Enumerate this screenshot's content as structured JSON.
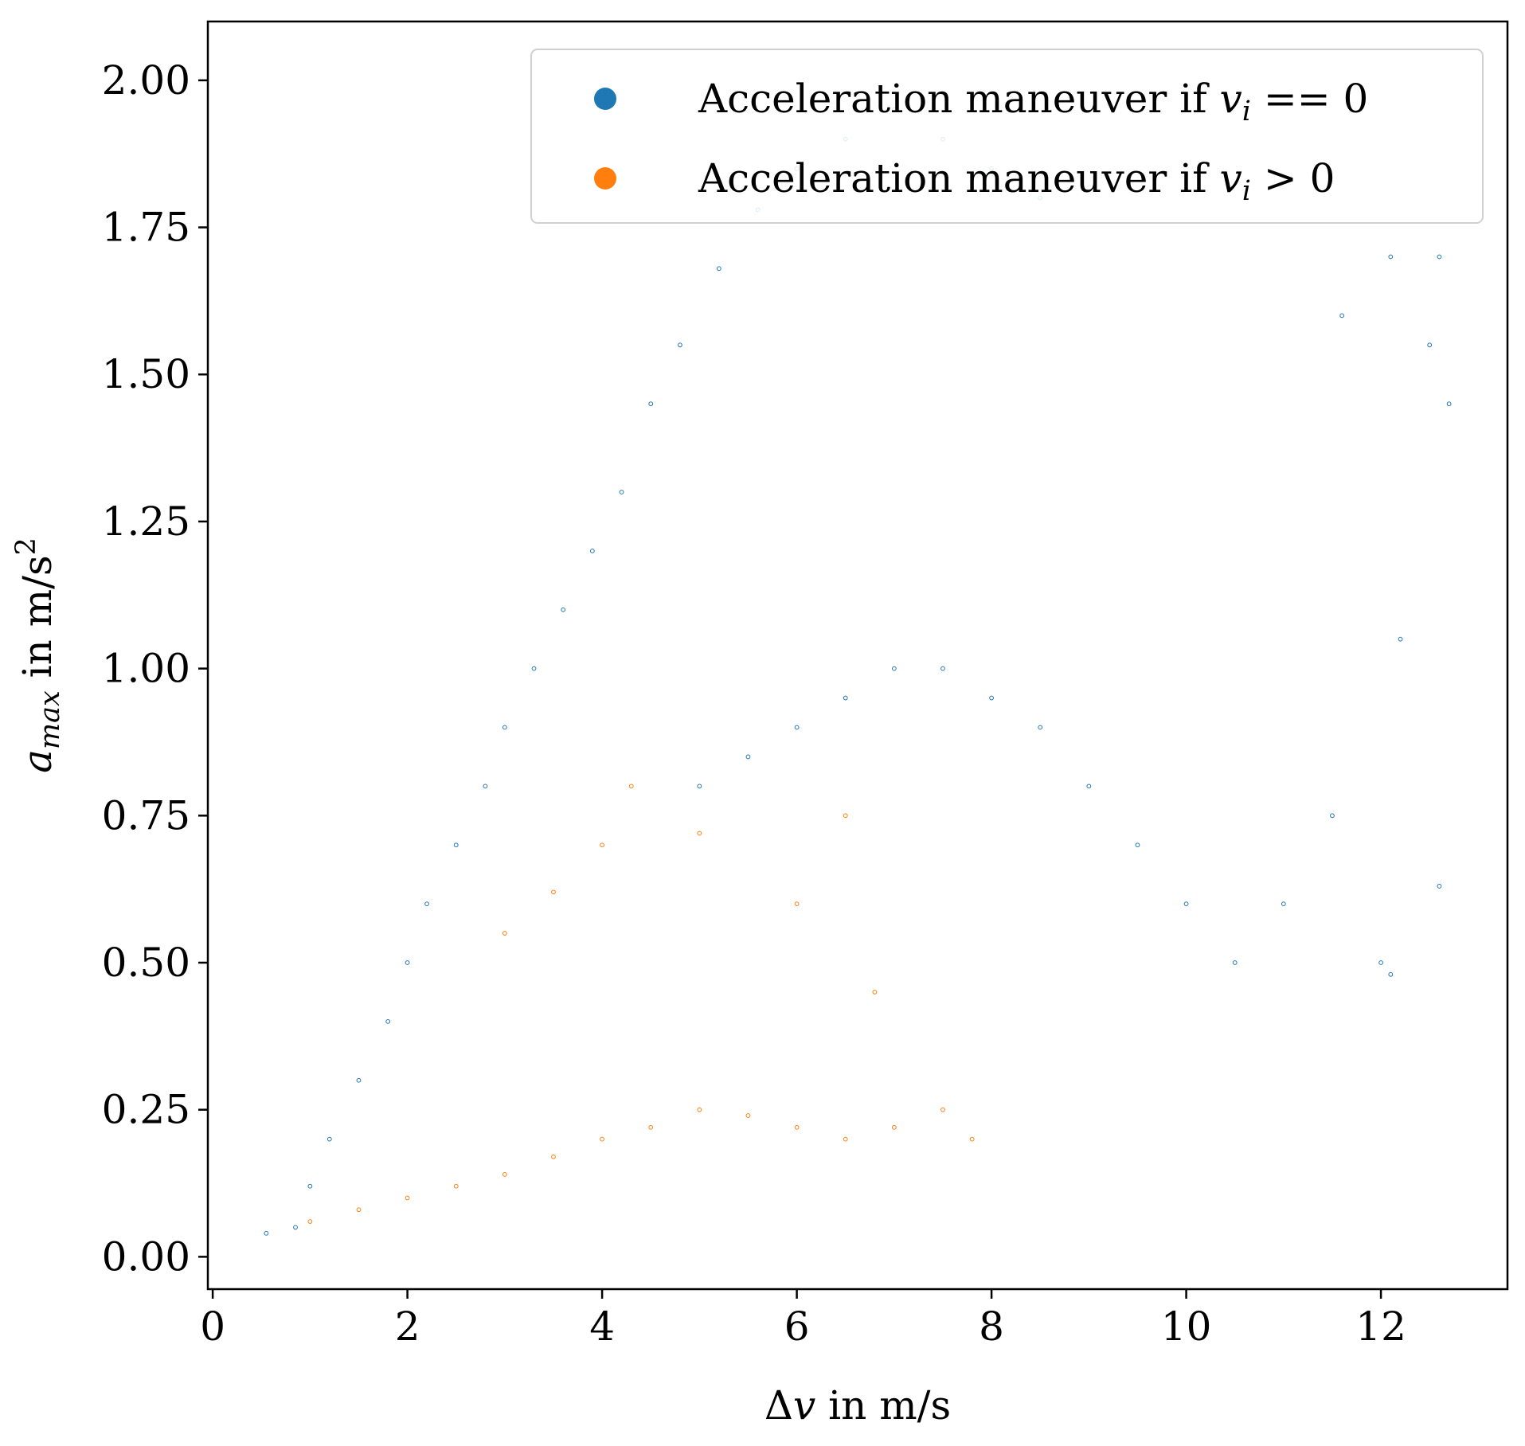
{
  "chart_data": {
    "type": "scatter",
    "title": "",
    "xlabel": {
      "prefix": "Δ",
      "var": "v",
      "suffix": " in m/s"
    },
    "ylabel": {
      "var": "a",
      "sub": "max",
      "mid": " in m/s",
      "sup": "2"
    },
    "xlim": [
      -0.05,
      13.3
    ],
    "ylim": [
      -0.055,
      2.1
    ],
    "x_ticks": [
      0,
      2,
      4,
      6,
      8,
      10,
      12
    ],
    "x_tick_labels": [
      "0",
      "2",
      "4",
      "6",
      "8",
      "10",
      "12"
    ],
    "y_ticks": [
      0.0,
      0.25,
      0.5,
      0.75,
      1.0,
      1.25,
      1.5,
      1.75,
      2.0
    ],
    "y_tick_labels": [
      "0.00",
      "0.25",
      "0.50",
      "0.75",
      "1.00",
      "1.25",
      "1.50",
      "1.75",
      "2.00"
    ],
    "grid": false,
    "legend_position": "top-right",
    "series": [
      {
        "legend_label": {
          "prefix": "Acceleration maneuver if ",
          "var": "v",
          "sub": "i",
          "rest": " == 0"
        },
        "color": "#1f77b4",
        "points_note": "dense cloud",
        "points": [
          [
            0.55,
            0.04
          ],
          [
            0.85,
            0.05
          ],
          [
            1.0,
            0.12
          ],
          [
            1.2,
            0.2
          ],
          [
            1.5,
            0.3
          ],
          [
            1.8,
            0.4
          ],
          [
            2.0,
            0.5
          ],
          [
            2.2,
            0.6
          ],
          [
            2.5,
            0.7
          ],
          [
            2.8,
            0.8
          ],
          [
            3.0,
            0.9
          ],
          [
            3.3,
            1.0
          ],
          [
            3.6,
            1.1
          ],
          [
            3.9,
            1.2
          ],
          [
            4.2,
            1.3
          ],
          [
            4.5,
            1.45
          ],
          [
            4.8,
            1.55
          ],
          [
            5.2,
            1.68
          ],
          [
            5.6,
            1.78
          ],
          [
            6.0,
            1.85
          ],
          [
            6.5,
            1.9
          ],
          [
            7.0,
            1.95
          ],
          [
            7.5,
            1.9
          ],
          [
            8.0,
            1.85
          ],
          [
            8.5,
            1.8
          ],
          [
            5.0,
            0.8
          ],
          [
            5.5,
            0.85
          ],
          [
            6.0,
            0.9
          ],
          [
            6.5,
            0.95
          ],
          [
            7.0,
            1.0
          ],
          [
            7.5,
            1.0
          ],
          [
            8.0,
            0.95
          ],
          [
            8.5,
            0.9
          ],
          [
            9.0,
            0.8
          ],
          [
            9.5,
            0.7
          ],
          [
            10.0,
            0.6
          ],
          [
            10.5,
            0.5
          ],
          [
            11.0,
            0.6
          ],
          [
            11.5,
            0.75
          ],
          [
            12.0,
            0.5
          ],
          [
            12.5,
            1.55
          ],
          [
            12.7,
            1.45
          ],
          [
            12.6,
            1.7
          ],
          [
            12.1,
            1.7
          ],
          [
            11.6,
            1.6
          ],
          [
            12.2,
            1.05
          ],
          [
            12.6,
            0.63
          ],
          [
            12.1,
            0.48
          ]
        ]
      },
      {
        "legend_label": {
          "prefix": "Acceleration maneuver if ",
          "var": "v",
          "sub": "i",
          "rest": " > 0"
        },
        "color": "#ff7f0e",
        "points_note": "dense cloud",
        "points": [
          [
            1.0,
            0.06
          ],
          [
            1.5,
            0.08
          ],
          [
            2.0,
            0.1
          ],
          [
            2.5,
            0.12
          ],
          [
            3.0,
            0.14
          ],
          [
            3.5,
            0.17
          ],
          [
            4.0,
            0.2
          ],
          [
            4.5,
            0.22
          ],
          [
            5.0,
            0.25
          ],
          [
            5.5,
            0.24
          ],
          [
            6.0,
            0.22
          ],
          [
            6.5,
            0.2
          ],
          [
            7.0,
            0.22
          ],
          [
            7.5,
            0.25
          ],
          [
            7.8,
            0.2
          ],
          [
            3.0,
            0.55
          ],
          [
            3.5,
            0.62
          ],
          [
            4.0,
            0.7
          ],
          [
            4.3,
            0.8
          ],
          [
            5.0,
            0.72
          ],
          [
            6.0,
            0.6
          ],
          [
            6.5,
            0.75
          ],
          [
            6.8,
            0.45
          ]
        ]
      }
    ]
  }
}
